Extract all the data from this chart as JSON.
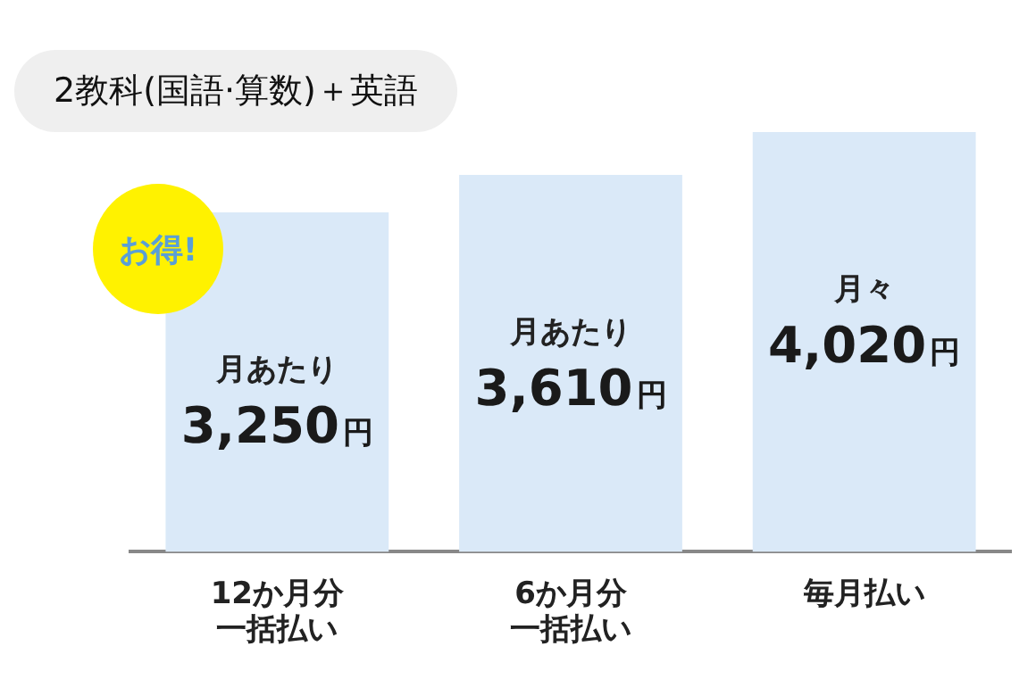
{
  "chart_data": {
    "type": "bar",
    "title": "2教科(国語·算数)＋英語",
    "categories": [
      "12か月分一括払い",
      "6か月分一括払い",
      "毎月払い"
    ],
    "values": [
      3250,
      3610,
      4020
    ],
    "value_labels": [
      "3,250円",
      "3,610円",
      "4,020円"
    ],
    "color": "#dae9f8",
    "annotations": [
      "お得!",
      "月あたり",
      "月あたり",
      "月々"
    ],
    "grid": false,
    "legend": false
  }
}
